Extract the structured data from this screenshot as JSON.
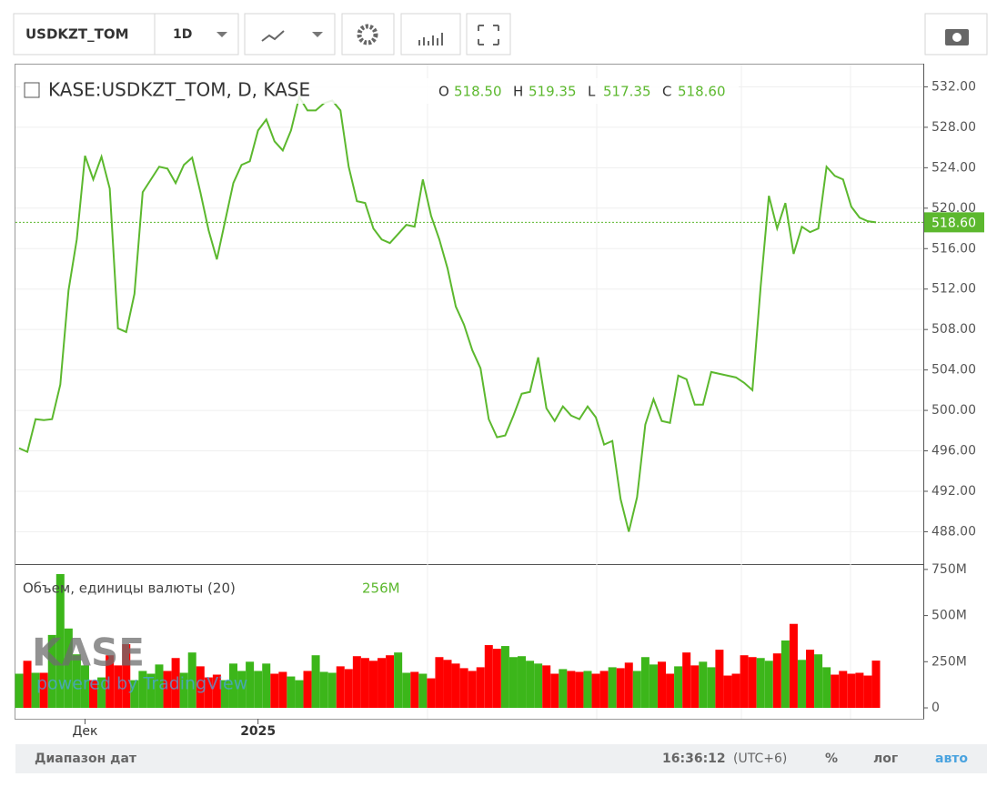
{
  "toolbar": {
    "symbol": "USDKZT_TOM",
    "interval": "1D"
  },
  "footer": {
    "range": "Диапазон дат",
    "time": "16:36:12",
    "tz": "(UTC+6)",
    "percent": "%",
    "log": "лог",
    "auto": "авто"
  },
  "watermark": {
    "brand": "KASE",
    "powered": "powered by TradingView"
  },
  "chart_data": [
    {
      "type": "line",
      "title": "KASE:USDKZT_TOM, D, KASE",
      "ohlc": [
        {
          "label": "O",
          "value": "518.50"
        },
        {
          "label": "H",
          "value": "519.35"
        },
        {
          "label": "L",
          "value": "517.35"
        },
        {
          "label": "C",
          "value": "518.60"
        }
      ],
      "series": [
        {
          "name": "USDKZT_TOM",
          "color": "#5cb82e",
          "values": [
            496.26,
            495.9,
            499.13,
            499.04,
            499.13,
            502.55,
            511.88,
            516.91,
            525.18,
            522.84,
            525.09,
            521.94,
            508.11,
            507.75,
            511.53,
            521.58,
            522.84,
            524.1,
            523.92,
            522.48,
            524.28,
            525.0,
            521.58,
            517.81,
            514.94,
            518.71,
            522.48,
            524.28,
            524.64,
            527.69,
            528.77,
            526.61,
            525.71,
            527.69,
            531.01,
            529.67,
            529.67,
            530.38,
            530.65,
            529.67,
            524.1,
            520.69,
            520.51,
            517.99,
            516.91,
            516.55,
            517.45,
            518.35,
            518.17,
            522.84,
            519.25,
            516.91,
            514.04,
            510.27,
            508.47,
            505.96,
            504.16,
            499.13,
            497.34,
            497.52,
            499.49,
            501.65,
            501.83,
            505.24,
            500.21,
            498.95,
            500.39,
            499.49,
            499.13,
            500.39,
            499.31,
            496.62,
            496.98,
            491.23,
            488.0,
            491.41,
            498.59,
            501.11,
            498.95,
            498.77,
            503.44,
            503.08,
            500.57,
            500.57,
            503.8,
            503.62,
            503.44,
            503.26,
            502.73,
            502.01,
            512.24,
            521.22,
            517.99,
            520.51,
            515.48,
            518.17,
            517.63,
            517.99,
            524.1,
            523.2,
            522.84,
            520.15,
            519.07,
            518.71,
            518.6
          ]
        }
      ],
      "ylim": [
        484.8,
        534.2
      ],
      "yticks": [
        {
          "value": 488,
          "label": "488.00"
        },
        {
          "value": 492,
          "label": "492.00"
        },
        {
          "value": 496,
          "label": "496.00"
        },
        {
          "value": 500,
          "label": "500.00"
        },
        {
          "value": 504,
          "label": "504.00"
        },
        {
          "value": 508,
          "label": "508.00"
        },
        {
          "value": 512,
          "label": "512.00"
        },
        {
          "value": 516,
          "label": "516.00"
        },
        {
          "value": 520,
          "label": "520.00"
        },
        {
          "value": 524,
          "label": "524.00"
        },
        {
          "value": 528,
          "label": "528.00"
        },
        {
          "value": 532,
          "label": "532.00"
        }
      ],
      "grid": true
    },
    {
      "type": "bar",
      "title": "Объем, единицы валюты (20)",
      "legend_value": "256M",
      "categories": [
        null,
        null,
        null,
        null,
        null,
        null,
        null,
        null,
        "Дек",
        null,
        null,
        null,
        null,
        null,
        null,
        null,
        null,
        null,
        null,
        null,
        null,
        null,
        null,
        null,
        null,
        null,
        null,
        null,
        null,
        "2025",
        null,
        null,
        null,
        null,
        null,
        null,
        null,
        null,
        null,
        null,
        null,
        null,
        null,
        null,
        null,
        null,
        null,
        null,
        null,
        null,
        null,
        null,
        null,
        null,
        null,
        null,
        null,
        null,
        null,
        null,
        null,
        null,
        null,
        null,
        null,
        null,
        null,
        null,
        null,
        null,
        null,
        null,
        null,
        null,
        null,
        null,
        null,
        null,
        null,
        null,
        null,
        null,
        null,
        null,
        null,
        null,
        null,
        null,
        null,
        null,
        null,
        null,
        null,
        null,
        null,
        null,
        null,
        null,
        null,
        null,
        null,
        null,
        null,
        null,
        null
      ],
      "up_color": "#3cb61a",
      "down_color": "#ff0000",
      "values": [
        185,
        255,
        190,
        190,
        395,
        725,
        430,
        290,
        230,
        150,
        165,
        285,
        230,
        345,
        150,
        200,
        185,
        235,
        200,
        270,
        190,
        300,
        225,
        165,
        180,
        150,
        240,
        200,
        250,
        200,
        240,
        185,
        195,
        170,
        150,
        200,
        285,
        195,
        190,
        225,
        210,
        280,
        270,
        255,
        270,
        285,
        300,
        190,
        195,
        185,
        160,
        275,
        260,
        240,
        215,
        200,
        220,
        340,
        320,
        335,
        275,
        280,
        255,
        240,
        230,
        185,
        210,
        200,
        195,
        200,
        185,
        200,
        220,
        215,
        245,
        200,
        275,
        235,
        250,
        185,
        225,
        300,
        230,
        250,
        220,
        315,
        175,
        185,
        285,
        275,
        270,
        255,
        295,
        365,
        455,
        260,
        315,
        290,
        220,
        180,
        200,
        185,
        190,
        175,
        256
      ],
      "ylim": [
        -59,
        774
      ],
      "yticks": [
        0,
        {
          "value": 250,
          "label": "250M"
        },
        {
          "value": 500,
          "label": "500M"
        },
        {
          "value": 750,
          "label": "750M"
        }
      ]
    }
  ]
}
